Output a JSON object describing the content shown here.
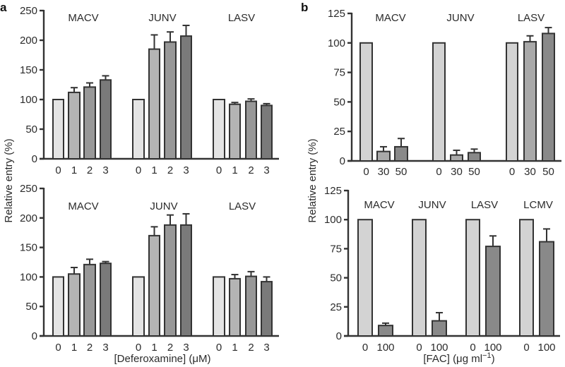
{
  "figure": {
    "panel_letters": [
      "a",
      "b"
    ],
    "y_axis_title": "Relative entry (%)",
    "x_axis_title_left": "[Deferoxamine] (μM)",
    "x_axis_title_right_main": "[FAC] (μg ml",
    "x_axis_title_right_sup": "−1",
    "x_axis_title_right_end": ")"
  },
  "colors": {
    "axis": "#333333",
    "text": "#2b2b2b",
    "left_shades": [
      "#e4e4e4",
      "#b4b4b4",
      "#989898",
      "#7a7a7a"
    ],
    "right_shades": [
      "#d3d3d3",
      "#a9a9a9",
      "#898989"
    ]
  },
  "chart_data": [
    {
      "id": "a-top",
      "type": "bar",
      "panel": "a",
      "title": "",
      "xlabel": "",
      "ylabel": "Relative entry (%)",
      "ylim": [
        0,
        250
      ],
      "yticks": [
        0,
        50,
        100,
        150,
        200,
        250
      ],
      "grid": false,
      "groups": [
        {
          "name": "MACV",
          "categories": [
            "0",
            "1",
            "2",
            "3"
          ],
          "values": [
            100,
            112,
            121,
            133
          ],
          "errors": [
            0,
            8,
            7,
            7
          ]
        },
        {
          "name": "JUNV",
          "categories": [
            "0",
            "1",
            "2",
            "3"
          ],
          "values": [
            100,
            185,
            197,
            207
          ],
          "errors": [
            0,
            24,
            17,
            18
          ]
        },
        {
          "name": "LASV",
          "categories": [
            "0",
            "1",
            "2",
            "3"
          ],
          "values": [
            100,
            92,
            97,
            90
          ],
          "errors": [
            0,
            3,
            4,
            3
          ]
        }
      ]
    },
    {
      "id": "a-bottom",
      "type": "bar",
      "panel": "a",
      "title": "",
      "xlabel": "[Deferoxamine] (μM)",
      "ylabel": "Relative entry (%)",
      "ylim": [
        0,
        250
      ],
      "yticks": [
        0,
        50,
        100,
        150,
        200,
        250
      ],
      "grid": false,
      "groups": [
        {
          "name": "MACV",
          "categories": [
            "0",
            "1",
            "2",
            "3"
          ],
          "values": [
            100,
            105,
            121,
            123
          ],
          "errors": [
            0,
            11,
            9,
            3
          ]
        },
        {
          "name": "JUNV",
          "categories": [
            "0",
            "1",
            "2",
            "3"
          ],
          "values": [
            100,
            170,
            188,
            188
          ],
          "errors": [
            0,
            15,
            17,
            19
          ]
        },
        {
          "name": "LASV",
          "categories": [
            "0",
            "1",
            "2",
            "3"
          ],
          "values": [
            100,
            97,
            101,
            92
          ],
          "errors": [
            0,
            7,
            8,
            8
          ]
        }
      ]
    },
    {
      "id": "b-top",
      "type": "bar",
      "panel": "b",
      "title": "",
      "xlabel": "",
      "ylabel": "Relative entry (%)",
      "ylim": [
        0,
        125
      ],
      "yticks": [
        0,
        25,
        50,
        75,
        100,
        125
      ],
      "grid": false,
      "groups": [
        {
          "name": "MACV",
          "categories": [
            "0",
            "30",
            "50"
          ],
          "values": [
            100,
            8,
            12
          ],
          "errors": [
            0,
            4,
            7
          ]
        },
        {
          "name": "JUNV",
          "categories": [
            "0",
            "30",
            "50"
          ],
          "values": [
            100,
            5,
            7
          ],
          "errors": [
            0,
            4,
            3
          ]
        },
        {
          "name": "LASV",
          "categories": [
            "0",
            "30",
            "50"
          ],
          "values": [
            100,
            101,
            108
          ],
          "errors": [
            0,
            5,
            5
          ]
        }
      ]
    },
    {
      "id": "b-bottom",
      "type": "bar",
      "panel": "b",
      "title": "",
      "xlabel": "[FAC] (μg ml⁻¹)",
      "ylabel": "Relative entry (%)",
      "ylim": [
        0,
        125
      ],
      "yticks": [
        0,
        25,
        50,
        75,
        100,
        125
      ],
      "grid": false,
      "groups": [
        {
          "name": "MACV",
          "categories": [
            "0",
            "100"
          ],
          "values": [
            100,
            9
          ],
          "errors": [
            0,
            2
          ]
        },
        {
          "name": "JUNV",
          "categories": [
            "0",
            "100"
          ],
          "values": [
            100,
            13
          ],
          "errors": [
            0,
            7
          ]
        },
        {
          "name": "LASV",
          "categories": [
            "0",
            "100"
          ],
          "values": [
            100,
            77
          ],
          "errors": [
            0,
            9
          ]
        },
        {
          "name": "LCMV",
          "categories": [
            "0",
            "100"
          ],
          "values": [
            100,
            81
          ],
          "errors": [
            0,
            11
          ]
        }
      ]
    }
  ]
}
